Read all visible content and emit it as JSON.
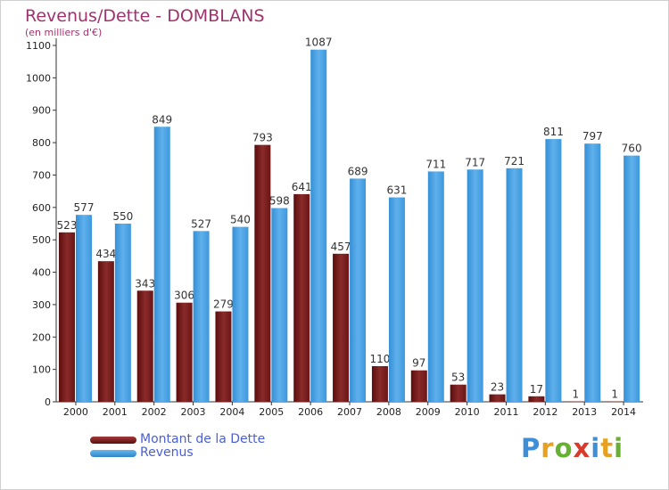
{
  "chart_data": {
    "type": "bar",
    "title": "Revenus/Dette - DOMBLANS",
    "subtitle": "(en milliers d'€)",
    "categories": [
      "2000",
      "2001",
      "2002",
      "2003",
      "2004",
      "2005",
      "2006",
      "2007",
      "2008",
      "2009",
      "2010",
      "2011",
      "2012",
      "2013",
      "2014"
    ],
    "series": [
      {
        "name": "Montant de la Dette",
        "color": "#7a1e1e",
        "values": [
          523,
          434,
          343,
          306,
          279,
          793,
          641,
          457,
          110,
          97,
          53,
          23,
          17,
          1,
          1
        ]
      },
      {
        "name": "Revenus",
        "color": "#3e9ee0",
        "values": [
          577,
          550,
          849,
          527,
          540,
          598,
          1087,
          689,
          631,
          711,
          717,
          721,
          811,
          797,
          760
        ]
      }
    ],
    "yticks": [
      0,
      100,
      200,
      300,
      400,
      500,
      600,
      700,
      800,
      900,
      1000,
      1100
    ],
    "ylim": [
      0,
      1100
    ],
    "grid": false,
    "legend_position": "bottom-left"
  },
  "logo": {
    "text": "Proxiti"
  }
}
